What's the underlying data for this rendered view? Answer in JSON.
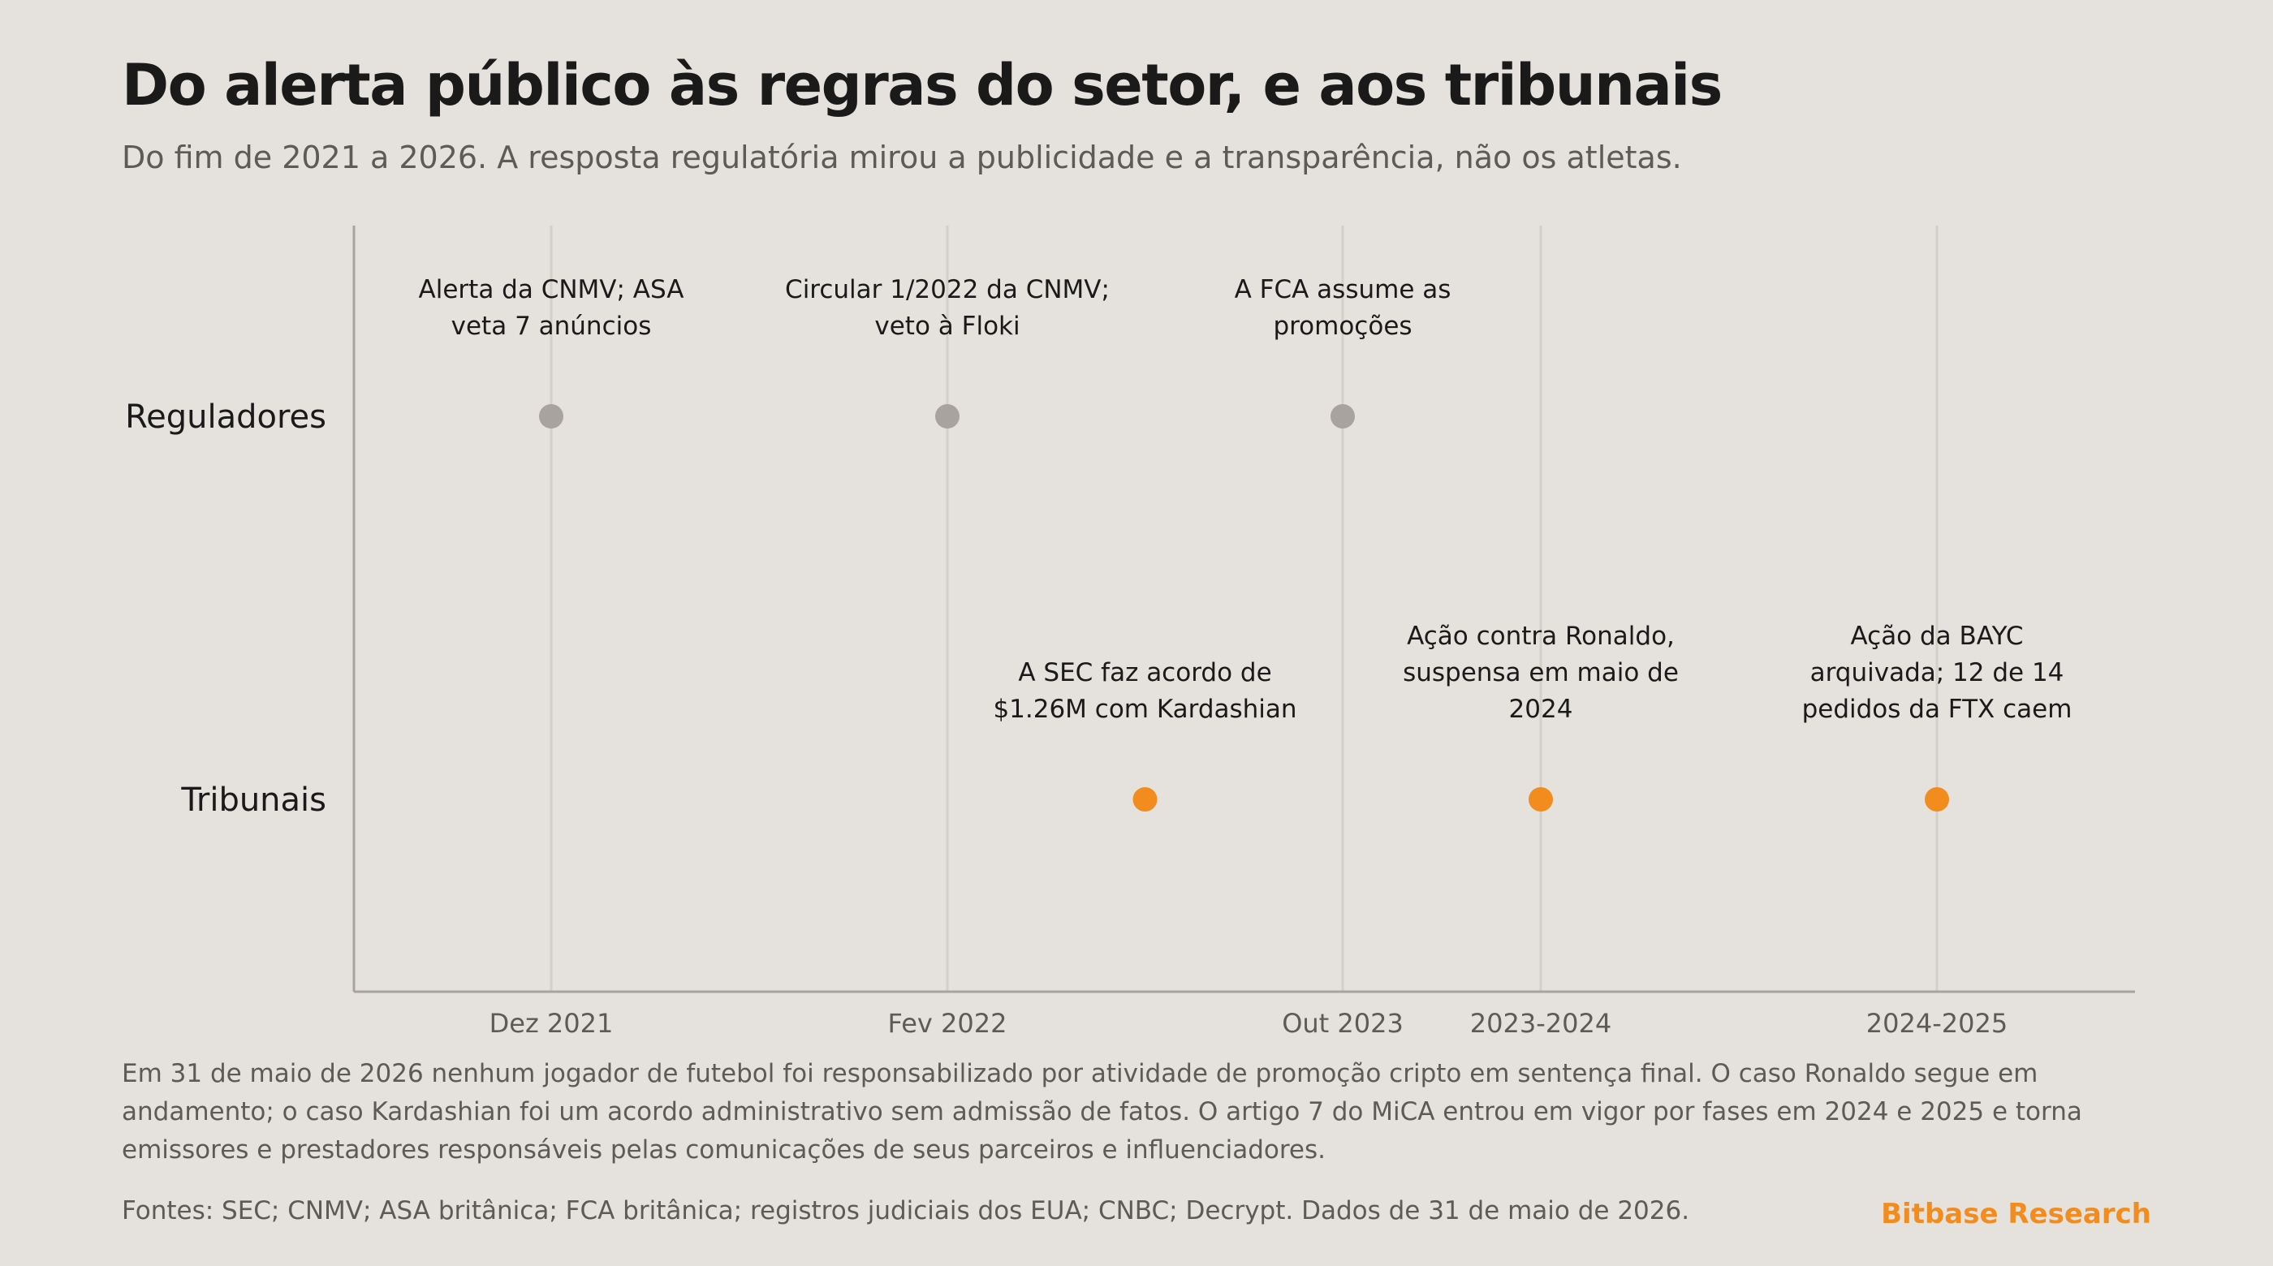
{
  "title": "Do alerta público às regras do setor, e aos tribunais",
  "subtitle": "Do fim de 2021 a 2026. A resposta regulatória mirou a publicidade e a transparência, não os atletas.",
  "note": "Em 31 de maio de 2026 nenhum jogador de futebol foi responsabilizado por atividade de promoção cripto em sentença final. O caso Ronaldo segue em andamento; o caso Kardashian foi um acordo administrativo sem admissão de fatos. O artigo 7 do MiCA entrou em vigor por fases em 2024 e 2025 e torna emissores e prestadores responsáveis pelas comunicações de seus parceiros e influenciadores.",
  "sources": "Fontes: SEC; CNMV; ASA britânica; FCA britânica; registros judiciais dos EUA; CNBC; Decrypt. Dados de 31 de maio de 2026.",
  "brand": "Bitbase Research",
  "colors": {
    "regulators": "#a8a39e",
    "courts": "#f28c1e",
    "axis": "#a8a39e",
    "gridline": "#d3cfc9",
    "background": "#e5e1dc"
  },
  "chart_data": {
    "type": "timeline",
    "grid": true,
    "categories": [
      "Dez 2021",
      "Fev 2022",
      "Out 2023",
      "2023-2024",
      "2024-2025"
    ],
    "rows": [
      "Reguladores",
      "Tribunais"
    ],
    "events": [
      {
        "row": "Reguladores",
        "x": "Dez 2021",
        "label": [
          "Alerta da CNMV; ASA",
          "veta 7 anúncios"
        ]
      },
      {
        "row": "Reguladores",
        "x": "Fev 2022",
        "label": [
          "Circular 1/2022 da CNMV;",
          "veto à Floki"
        ]
      },
      {
        "row": "Reguladores",
        "x": "Out 2023",
        "label": [
          "A FCA assume as",
          "promoções"
        ]
      },
      {
        "row": "Tribunais",
        "x": "",
        "label": [
          "A SEC faz acordo de",
          "$1.26M com Kardashian"
        ]
      },
      {
        "row": "Tribunais",
        "x": "2023-2024",
        "label": [
          "Ação contra Ronaldo,",
          "suspensa em maio de",
          "2024"
        ]
      },
      {
        "row": "Tribunais",
        "x": "2024-2025",
        "label": [
          "Ação da BAYC",
          "arquivada; 12 de 14",
          "pedidos da FTX caem"
        ]
      }
    ]
  }
}
